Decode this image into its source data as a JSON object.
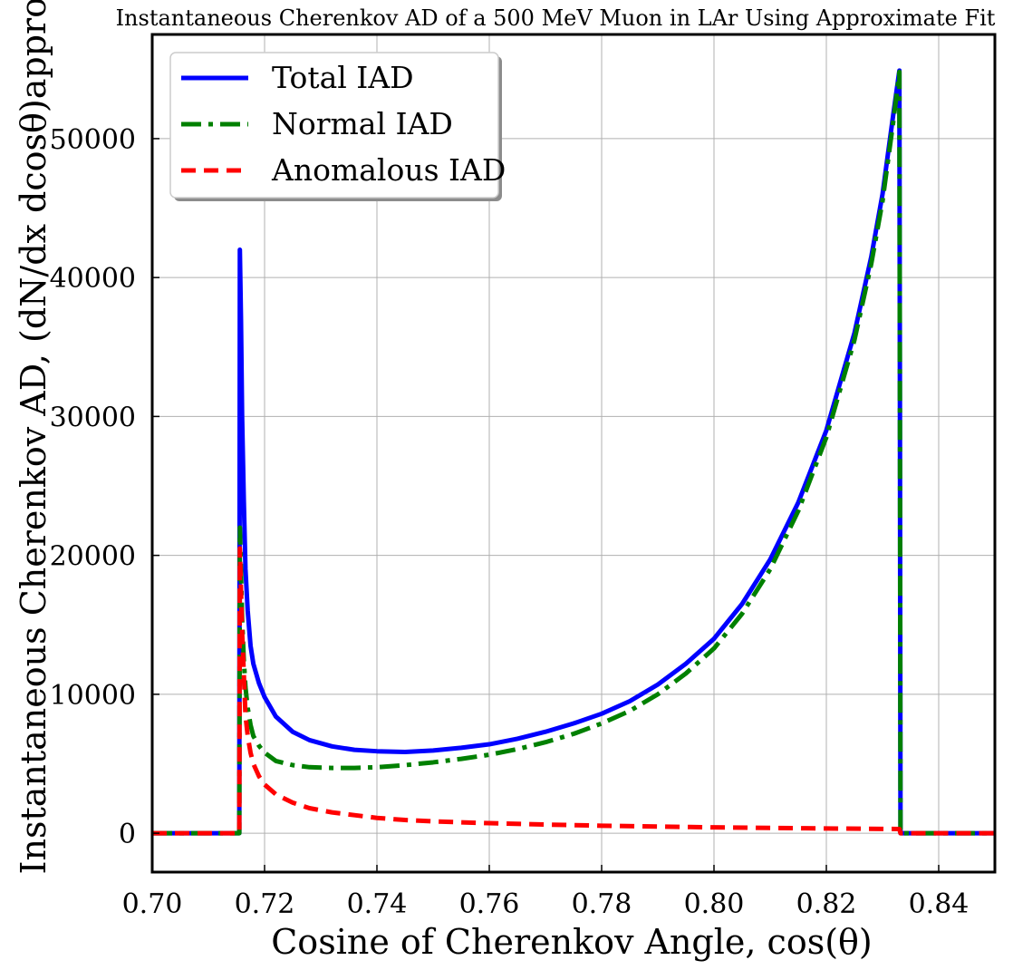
{
  "chart_data": {
    "type": "line",
    "title": "Instantaneous Cherenkov AD of a 500 MeV Muon in LAr Using Approximate Fit",
    "xlabel": "Cosine of Cherenkov Angle, cos(θ)",
    "ylabel": "Instantaneous Cherenkov AD, (dN/dx dcosθ)approx",
    "xlim": [
      0.7,
      0.85
    ],
    "ylim": [
      -2800,
      57500
    ],
    "xticks": [
      0.7,
      0.72,
      0.74,
      0.76,
      0.78,
      0.8,
      0.82,
      0.84
    ],
    "xtick_labels": [
      "0.70",
      "0.72",
      "0.74",
      "0.76",
      "0.78",
      "0.80",
      "0.82",
      "0.84"
    ],
    "yticks": [
      0,
      10000,
      20000,
      30000,
      40000,
      50000
    ],
    "ytick_labels": [
      "0",
      "10000",
      "20000",
      "30000",
      "40000",
      "50000"
    ],
    "grid": true,
    "legend_position": "top-left",
    "series": [
      {
        "name": "Total IAD",
        "color": "#0000ff",
        "style": "solid",
        "x": [
          0.7,
          0.7155,
          0.7156,
          0.7158,
          0.716,
          0.7163,
          0.7166,
          0.717,
          0.7175,
          0.718,
          0.719,
          0.72,
          0.722,
          0.725,
          0.728,
          0.732,
          0.736,
          0.74,
          0.745,
          0.75,
          0.755,
          0.76,
          0.765,
          0.77,
          0.775,
          0.78,
          0.785,
          0.79,
          0.795,
          0.8,
          0.805,
          0.81,
          0.815,
          0.82,
          0.825,
          0.828,
          0.83,
          0.832,
          0.833,
          0.8331,
          0.8332,
          0.85
        ],
        "y": [
          0,
          0,
          42000,
          37000,
          30000,
          24000,
          19000,
          16000,
          13500,
          12200,
          10800,
          9800,
          8400,
          7300,
          6700,
          6250,
          6000,
          5900,
          5850,
          5950,
          6150,
          6400,
          6800,
          7300,
          7900,
          8600,
          9500,
          10700,
          12200,
          14000,
          16500,
          19700,
          23800,
          29000,
          36000,
          41500,
          46000,
          52000,
          54900,
          30000,
          0,
          0
        ]
      },
      {
        "name": "Normal IAD",
        "color": "#008000",
        "style": "dashdot",
        "x": [
          0.7,
          0.7155,
          0.7156,
          0.7158,
          0.716,
          0.7163,
          0.7166,
          0.717,
          0.7175,
          0.718,
          0.719,
          0.72,
          0.722,
          0.725,
          0.728,
          0.732,
          0.736,
          0.74,
          0.745,
          0.75,
          0.755,
          0.76,
          0.765,
          0.77,
          0.775,
          0.78,
          0.785,
          0.79,
          0.795,
          0.8,
          0.805,
          0.81,
          0.815,
          0.82,
          0.825,
          0.828,
          0.83,
          0.832,
          0.833,
          0.8331,
          0.8332,
          0.85
        ],
        "y": [
          0,
          0,
          22000,
          19000,
          15500,
          12500,
          10500,
          9000,
          7800,
          7000,
          6300,
          5800,
          5200,
          4900,
          4750,
          4700,
          4700,
          4750,
          4900,
          5100,
          5350,
          5650,
          6050,
          6550,
          7150,
          7900,
          8800,
          10000,
          11500,
          13300,
          15800,
          19000,
          23200,
          28500,
          35500,
          41000,
          45500,
          51500,
          54800,
          30000,
          0,
          0
        ]
      },
      {
        "name": "Anomalous IAD",
        "color": "#ff0000",
        "style": "dashed",
        "x": [
          0.7,
          0.7155,
          0.7156,
          0.7158,
          0.716,
          0.7163,
          0.7166,
          0.717,
          0.7175,
          0.718,
          0.719,
          0.72,
          0.722,
          0.725,
          0.728,
          0.732,
          0.736,
          0.74,
          0.745,
          0.75,
          0.76,
          0.77,
          0.78,
          0.79,
          0.8,
          0.81,
          0.82,
          0.83,
          0.833,
          0.8332,
          0.85
        ],
        "y": [
          0,
          0,
          20500,
          17500,
          14500,
          11500,
          8500,
          7000,
          5800,
          5000,
          4100,
          3500,
          2800,
          2200,
          1800,
          1500,
          1300,
          1100,
          950,
          850,
          720,
          620,
          540,
          480,
          420,
          380,
          340,
          310,
          300,
          0,
          0
        ]
      }
    ]
  }
}
